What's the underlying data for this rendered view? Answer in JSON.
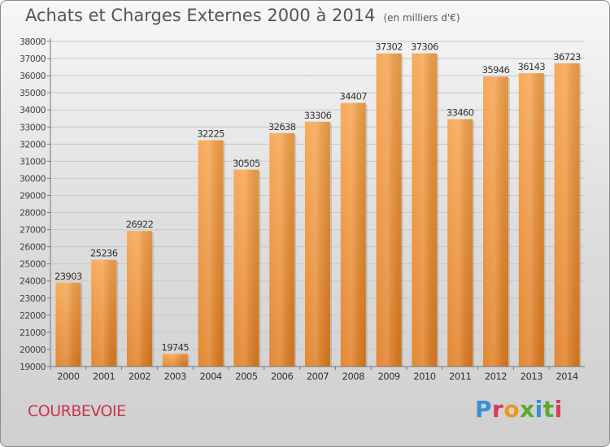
{
  "header": {
    "title": "Achats et Charges Externes 2000 à 2014",
    "unit": "(en milliers d'€)"
  },
  "footer": {
    "city": "COURBEVOIE",
    "brand": "Proxiti"
  },
  "colors": {
    "bar_top": "#f6a24a",
    "bar_bottom": "#e07b1e",
    "grid": "#c8c8c8",
    "axis": "#777777",
    "city": "#c8364e"
  },
  "chart_data": {
    "type": "bar",
    "title": "Achats et Charges Externes 2000 à 2014",
    "subtitle": "(en milliers d'€)",
    "categories": [
      "2000",
      "2001",
      "2002",
      "2003",
      "2004",
      "2005",
      "2006",
      "2007",
      "2008",
      "2009",
      "2010",
      "2011",
      "2012",
      "2013",
      "2014"
    ],
    "values": [
      23903,
      25236,
      26922,
      19745,
      32225,
      30505,
      32638,
      33306,
      34407,
      37302,
      37306,
      33460,
      35946,
      36143,
      36723
    ],
    "ylim": [
      19000,
      38000
    ],
    "yticks": [
      19000,
      20000,
      21000,
      22000,
      23000,
      24000,
      25000,
      26000,
      27000,
      28000,
      29000,
      30000,
      31000,
      32000,
      33000,
      34000,
      35000,
      36000,
      37000,
      38000
    ],
    "grid": true,
    "data_labels": true
  }
}
